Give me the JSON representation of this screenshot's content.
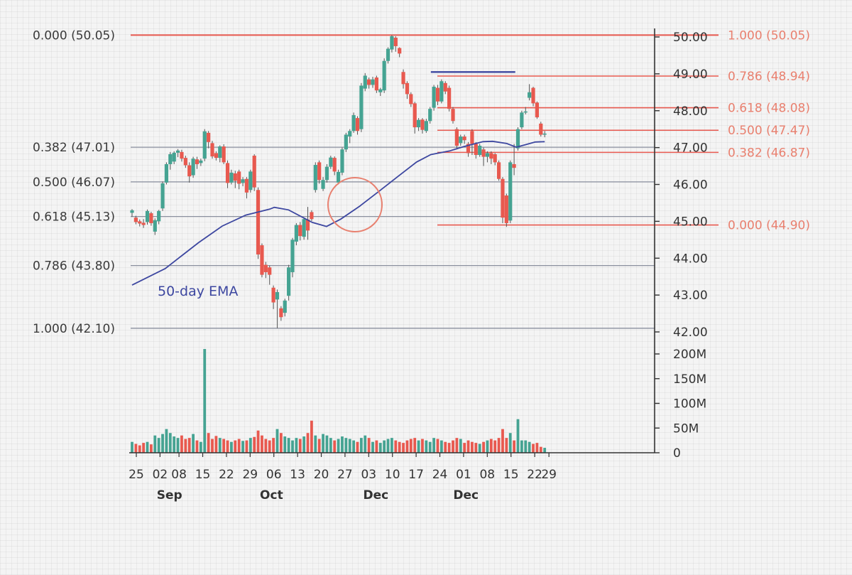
{
  "chart_data": {
    "type": "candlestick",
    "colors": {
      "up": "#45a392",
      "down": "#e8594f",
      "ema": "#3d47a0",
      "fib_left": "#8a8f9e",
      "fib_right": "#e8594f"
    },
    "price_axis": {
      "ylim": [
        42.0,
        50.05
      ],
      "ticks": [
        "50.00",
        "49.00",
        "48.00",
        "47.00",
        "46.00",
        "45.00",
        "44.00",
        "43.00",
        "42.00"
      ]
    },
    "volume_axis": {
      "ylim": [
        0,
        210
      ],
      "unit": "M",
      "ticks": [
        "200M",
        "150M",
        "100M",
        "50M",
        "0"
      ]
    },
    "x_axis": {
      "day_ticks": [
        {
          "label": "25",
          "index": 0
        },
        {
          "label": "02",
          "index": 5
        },
        {
          "label": "08",
          "index": 9
        },
        {
          "label": "15",
          "index": 14
        },
        {
          "label": "22",
          "index": 19
        },
        {
          "label": "29",
          "index": 24
        },
        {
          "label": "06",
          "index": 29
        },
        {
          "label": "13",
          "index": 34
        },
        {
          "label": "20",
          "index": 39
        },
        {
          "label": "27",
          "index": 44
        },
        {
          "label": "03",
          "index": 49
        },
        {
          "label": "10",
          "index": 54
        },
        {
          "label": "17",
          "index": 59
        },
        {
          "label": "24",
          "index": 64
        },
        {
          "label": "01",
          "index": 69
        },
        {
          "label": "08",
          "index": 74
        },
        {
          "label": "15",
          "index": 79
        },
        {
          "label": "22",
          "index": 84
        },
        {
          "label": "29",
          "index": 87
        }
      ],
      "month_labels": [
        {
          "label": "Sep",
          "index": 7
        },
        {
          "label": "Oct",
          "index": 28.5
        },
        {
          "label": "Dec",
          "index": 50.5
        },
        {
          "label": "Dec",
          "index": 69.5
        }
      ]
    },
    "fib_left": [
      {
        "label": "0.000 (50.05)",
        "price": 50.05
      },
      {
        "label": "0.382 (47.01)",
        "price": 47.01
      },
      {
        "label": "0.500 (46.07)",
        "price": 46.07
      },
      {
        "label": "0.618 (45.13)",
        "price": 45.13
      },
      {
        "label": "0.786 (43.80)",
        "price": 43.8
      },
      {
        "label": "1.000 (42.10)",
        "price": 42.1
      }
    ],
    "fib_right": [
      {
        "label": "1.000 (50.05)",
        "price": 50.05
      },
      {
        "label": "0.786 (48.94)",
        "price": 48.94
      },
      {
        "label": "0.618 (48.08)",
        "price": 48.08
      },
      {
        "label": "0.500 (47.47)",
        "price": 47.47
      },
      {
        "label": "0.382 (46.87)",
        "price": 46.87
      },
      {
        "label": "0.000 (44.90)",
        "price": 44.9
      }
    ],
    "resistance_line": {
      "price": 49.05,
      "from_index": 63,
      "to_index": 79
    },
    "ema_label": "50-day EMA",
    "ema": [
      [
        0,
        43.27
      ],
      [
        7,
        43.72
      ],
      [
        14,
        44.42
      ],
      [
        19,
        44.87
      ],
      [
        24,
        45.17
      ],
      [
        29,
        45.33
      ],
      [
        30,
        45.38
      ],
      [
        33,
        45.31
      ],
      [
        38,
        44.97
      ],
      [
        41,
        44.86
      ],
      [
        44,
        45.06
      ],
      [
        48,
        45.41
      ],
      [
        52,
        45.81
      ],
      [
        56,
        46.21
      ],
      [
        60,
        46.61
      ],
      [
        63,
        46.81
      ],
      [
        67,
        46.91
      ],
      [
        70,
        47.03
      ],
      [
        74,
        47.16
      ],
      [
        76,
        47.17
      ],
      [
        79,
        47.11
      ],
      [
        81,
        47.01
      ],
      [
        83,
        47.08
      ],
      [
        85,
        47.15
      ],
      [
        87,
        47.16
      ]
    ],
    "candles": [
      [
        45.23,
        45.3,
        45.12,
        45.33,
        22
      ],
      [
        45.1,
        44.98,
        44.92,
        45.15,
        18
      ],
      [
        45.0,
        44.94,
        44.86,
        45.05,
        15
      ],
      [
        44.96,
        44.9,
        44.82,
        45.06,
        20
      ],
      [
        44.98,
        45.28,
        44.91,
        45.32,
        22
      ],
      [
        45.22,
        44.95,
        44.88,
        45.26,
        17
      ],
      [
        44.72,
        45.03,
        44.63,
        45.08,
        35
      ],
      [
        45.0,
        45.28,
        44.92,
        45.31,
        30
      ],
      [
        45.35,
        46.03,
        45.28,
        46.08,
        38
      ],
      [
        46.05,
        46.55,
        46.0,
        46.6,
        48
      ],
      [
        46.55,
        46.82,
        46.4,
        46.88,
        40
      ],
      [
        46.62,
        46.86,
        46.55,
        46.9,
        33
      ],
      [
        46.86,
        46.92,
        46.74,
        46.96,
        30
      ],
      [
        46.88,
        46.7,
        46.62,
        46.94,
        35
      ],
      [
        46.72,
        46.52,
        46.45,
        46.78,
        28
      ],
      [
        46.52,
        46.22,
        46.05,
        46.6,
        30
      ],
      [
        46.25,
        46.7,
        46.18,
        46.75,
        38
      ],
      [
        46.68,
        46.55,
        46.42,
        46.75,
        25
      ],
      [
        46.58,
        46.65,
        46.5,
        46.7,
        22
      ],
      [
        46.7,
        47.44,
        46.63,
        47.5,
        210
      ],
      [
        47.4,
        47.15,
        46.98,
        47.45,
        40
      ],
      [
        47.12,
        46.76,
        46.7,
        47.18,
        28
      ],
      [
        46.85,
        46.72,
        46.65,
        46.9,
        34
      ],
      [
        46.72,
        47.03,
        46.6,
        47.06,
        30
      ],
      [
        47.03,
        46.6,
        46.55,
        47.09,
        28
      ],
      [
        46.58,
        46.04,
        45.9,
        46.65,
        25
      ],
      [
        46.05,
        46.32,
        46.0,
        46.4,
        22
      ],
      [
        46.3,
        46.1,
        45.9,
        46.37,
        25
      ],
      [
        46.35,
        46.02,
        45.87,
        46.4,
        28
      ],
      [
        46.04,
        46.14,
        45.95,
        46.2,
        24
      ],
      [
        46.15,
        45.78,
        45.62,
        46.2,
        25
      ],
      [
        45.85,
        46.35,
        45.78,
        46.4,
        30
      ],
      [
        46.78,
        45.92,
        45.82,
        46.82,
        32
      ],
      [
        45.85,
        44.1,
        43.98,
        45.92,
        45
      ],
      [
        44.35,
        43.55,
        43.48,
        44.4,
        35
      ],
      [
        43.82,
        43.62,
        43.46,
        43.9,
        28
      ],
      [
        43.75,
        43.55,
        43.28,
        43.8,
        25
      ],
      [
        43.2,
        42.8,
        42.62,
        43.26,
        30
      ],
      [
        42.88,
        43.08,
        42.1,
        43.15,
        48
      ],
      [
        42.64,
        42.4,
        42.3,
        42.7,
        40
      ],
      [
        42.52,
        42.85,
        42.42,
        42.9,
        33
      ],
      [
        42.98,
        43.75,
        42.85,
        43.82,
        30
      ],
      [
        43.62,
        44.5,
        43.48,
        44.55,
        25
      ],
      [
        44.45,
        44.9,
        44.35,
        44.95,
        30
      ],
      [
        44.9,
        44.6,
        44.48,
        44.98,
        28
      ],
      [
        44.58,
        45.06,
        44.5,
        45.1,
        33
      ],
      [
        45.05,
        44.75,
        44.5,
        45.39,
        40
      ],
      [
        45.25,
        45.06,
        45.01,
        45.3,
        65
      ],
      [
        45.85,
        46.53,
        45.78,
        46.6,
        35
      ],
      [
        46.6,
        46.12,
        46.02,
        46.65,
        28
      ],
      [
        45.88,
        46.12,
        45.82,
        46.2,
        38
      ],
      [
        46.12,
        46.48,
        46.05,
        46.55,
        35
      ],
      [
        46.48,
        46.73,
        46.42,
        46.78,
        30
      ],
      [
        46.72,
        46.35,
        46.25,
        46.76,
        25
      ],
      [
        46.05,
        46.34,
        46.0,
        46.4,
        28
      ],
      [
        46.32,
        46.95,
        46.25,
        47.0,
        33
      ],
      [
        46.95,
        47.35,
        46.88,
        47.4,
        30
      ],
      [
        47.3,
        47.45,
        47.12,
        47.5,
        28
      ],
      [
        47.45,
        47.88,
        47.4,
        47.95,
        25
      ],
      [
        47.8,
        47.45,
        47.35,
        47.85,
        22
      ],
      [
        47.5,
        48.68,
        47.42,
        48.75,
        30
      ],
      [
        48.6,
        48.95,
        48.53,
        49.02,
        35
      ],
      [
        48.85,
        48.7,
        48.6,
        48.9,
        30
      ],
      [
        48.7,
        48.85,
        48.62,
        48.92,
        22
      ],
      [
        48.9,
        48.55,
        48.48,
        48.95,
        25
      ],
      [
        48.5,
        48.58,
        48.4,
        48.62,
        20
      ],
      [
        48.55,
        49.35,
        48.48,
        49.42,
        25
      ],
      [
        49.35,
        49.68,
        49.28,
        49.72,
        28
      ],
      [
        49.66,
        50.02,
        49.58,
        50.05,
        30
      ],
      [
        49.98,
        49.75,
        49.6,
        50.02,
        25
      ],
      [
        49.7,
        49.55,
        49.45,
        49.72,
        22
      ],
      [
        49.05,
        48.72,
        48.6,
        49.12,
        20
      ],
      [
        48.75,
        48.45,
        48.32,
        48.8,
        25
      ],
      [
        48.45,
        48.18,
        48.1,
        48.5,
        28
      ],
      [
        48.2,
        47.55,
        47.38,
        48.24,
        30
      ],
      [
        47.55,
        47.75,
        47.45,
        47.8,
        25
      ],
      [
        47.76,
        47.48,
        47.38,
        47.8,
        28
      ],
      [
        47.45,
        47.72,
        47.4,
        47.78,
        25
      ],
      [
        47.72,
        48.05,
        47.65,
        48.1,
        22
      ],
      [
        48.08,
        48.65,
        48.0,
        48.7,
        30
      ],
      [
        48.62,
        48.25,
        48.15,
        48.7,
        28
      ],
      [
        48.25,
        48.8,
        48.2,
        48.85,
        25
      ],
      [
        48.75,
        48.52,
        48.45,
        48.8,
        22
      ],
      [
        48.62,
        48.05,
        47.98,
        48.68,
        20
      ],
      [
        48.05,
        47.72,
        47.65,
        48.1,
        25
      ],
      [
        47.5,
        47.05,
        46.95,
        47.55,
        30
      ],
      [
        47.12,
        47.3,
        47.05,
        47.35,
        28
      ],
      [
        47.3,
        47.2,
        47.1,
        47.35,
        20
      ],
      [
        47.1,
        46.85,
        46.75,
        47.15,
        25
      ]
    ],
    "candles_tail": [
      [
        47.45,
        47.1,
        46.8,
        47.5,
        22
      ],
      [
        47.1,
        46.8,
        46.7,
        47.15,
        20
      ],
      [
        46.8,
        47.05,
        46.75,
        47.1,
        18
      ],
      [
        46.95,
        46.75,
        46.5,
        47.0,
        22
      ],
      [
        46.75,
        46.85,
        46.6,
        46.9,
        25
      ],
      [
        46.85,
        46.7,
        46.55,
        46.9,
        28
      ],
      [
        46.82,
        46.6,
        46.52,
        46.85,
        25
      ],
      [
        46.6,
        46.15,
        46.1,
        46.65,
        30
      ],
      [
        46.15,
        45.1,
        44.95,
        46.2,
        48
      ],
      [
        45.7,
        44.95,
        44.85,
        45.75,
        30
      ],
      [
        45.02,
        46.6,
        44.95,
        46.65,
        40
      ],
      [
        46.55,
        46.45,
        46.25,
        47.1,
        25
      ],
      [
        46.98,
        47.5,
        46.92,
        47.55,
        68
      ],
      [
        47.55,
        47.95,
        47.5,
        48.0,
        25
      ],
      [
        47.95,
        47.98,
        47.9,
        48.1,
        25
      ],
      [
        48.35,
        48.5,
        48.28,
        48.72,
        22
      ],
      [
        48.62,
        48.2,
        48.12,
        48.65,
        18
      ],
      [
        48.22,
        47.82,
        47.78,
        48.25,
        20
      ],
      [
        47.65,
        47.35,
        47.3,
        47.7,
        12
      ],
      [
        47.35,
        47.38,
        47.28,
        47.45,
        10
      ]
    ]
  }
}
